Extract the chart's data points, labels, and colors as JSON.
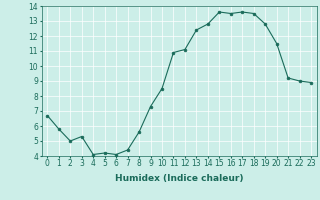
{
  "x": [
    0,
    1,
    2,
    3,
    4,
    5,
    6,
    7,
    8,
    9,
    10,
    11,
    12,
    13,
    14,
    15,
    16,
    17,
    18,
    19,
    20,
    21,
    22,
    23
  ],
  "y": [
    6.7,
    5.8,
    5.0,
    5.3,
    4.1,
    4.2,
    4.1,
    4.4,
    5.6,
    7.3,
    8.5,
    10.9,
    11.1,
    12.4,
    12.8,
    13.6,
    13.5,
    13.6,
    13.5,
    12.8,
    11.5,
    9.2,
    9.0,
    8.9
  ],
  "line_color": "#1a6b5a",
  "marker": "o",
  "marker_size": 2.0,
  "bg_color": "#cceee8",
  "grid_color": "#ffffff",
  "xlabel": "Humidex (Indice chaleur)",
  "ylim": [
    4,
    14
  ],
  "xlim_min": -0.5,
  "xlim_max": 23.5,
  "yticks": [
    4,
    5,
    6,
    7,
    8,
    9,
    10,
    11,
    12,
    13,
    14
  ],
  "xticks": [
    0,
    1,
    2,
    3,
    4,
    5,
    6,
    7,
    8,
    9,
    10,
    11,
    12,
    13,
    14,
    15,
    16,
    17,
    18,
    19,
    20,
    21,
    22,
    23
  ],
  "tick_color": "#1a6b5a",
  "xlabel_fontsize": 6.5,
  "tick_fontsize": 5.5,
  "linewidth": 0.8
}
